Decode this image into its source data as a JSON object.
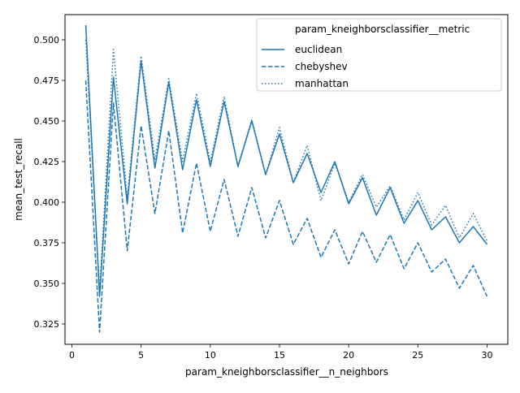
{
  "chart_data": {
    "type": "line",
    "xlabel": "param_kneighborsclassifier__n_neighbors",
    "ylabel": "mean_test_recall",
    "xlim": [
      -0.5,
      31.5
    ],
    "ylim": [
      0.3125,
      0.5155
    ],
    "x_ticks": [
      0,
      5,
      10,
      15,
      20,
      25,
      30
    ],
    "x_tick_labels": [
      "0",
      "5",
      "10",
      "15",
      "20",
      "25",
      "30"
    ],
    "y_ticks": [
      0.325,
      0.35,
      0.375,
      0.4,
      0.425,
      0.45,
      0.475,
      0.5
    ],
    "y_tick_labels": [
      "0.325",
      "0.350",
      "0.375",
      "0.400",
      "0.425",
      "0.450",
      "0.475",
      "0.500"
    ],
    "grid": false,
    "legend": {
      "title": "param_kneighborsclassifier__metric",
      "placement": "top-right"
    },
    "line_color": "#1f77b4",
    "x": [
      1,
      2,
      3,
      4,
      5,
      6,
      7,
      8,
      9,
      10,
      11,
      12,
      13,
      14,
      15,
      16,
      17,
      18,
      19,
      20,
      21,
      22,
      23,
      24,
      25,
      26,
      27,
      28,
      29,
      30
    ],
    "series": [
      {
        "name": "euclidean",
        "dash": "solid",
        "values": [
          0.509,
          0.342,
          0.477,
          0.399,
          0.487,
          0.421,
          0.474,
          0.42,
          0.463,
          0.422,
          0.462,
          0.422,
          0.45,
          0.417,
          0.442,
          0.412,
          0.43,
          0.406,
          0.425,
          0.399,
          0.415,
          0.392,
          0.409,
          0.387,
          0.401,
          0.383,
          0.391,
          0.375,
          0.385,
          0.374
        ]
      },
      {
        "name": "chebyshev",
        "dash": "dashed",
        "values": [
          0.475,
          0.32,
          0.461,
          0.37,
          0.447,
          0.393,
          0.444,
          0.381,
          0.424,
          0.382,
          0.414,
          0.379,
          0.409,
          0.378,
          0.401,
          0.374,
          0.39,
          0.366,
          0.383,
          0.362,
          0.382,
          0.363,
          0.38,
          0.359,
          0.375,
          0.357,
          0.365,
          0.347,
          0.361,
          0.342
        ]
      },
      {
        "name": "manhattan",
        "dash": "dotted",
        "values": [
          0.5,
          0.345,
          0.494,
          0.403,
          0.49,
          0.426,
          0.476,
          0.425,
          0.467,
          0.425,
          0.465,
          0.422,
          0.451,
          0.417,
          0.446,
          0.412,
          0.435,
          0.401,
          0.424,
          0.4,
          0.417,
          0.397,
          0.41,
          0.389,
          0.406,
          0.386,
          0.398,
          0.378,
          0.393,
          0.376
        ]
      }
    ]
  }
}
